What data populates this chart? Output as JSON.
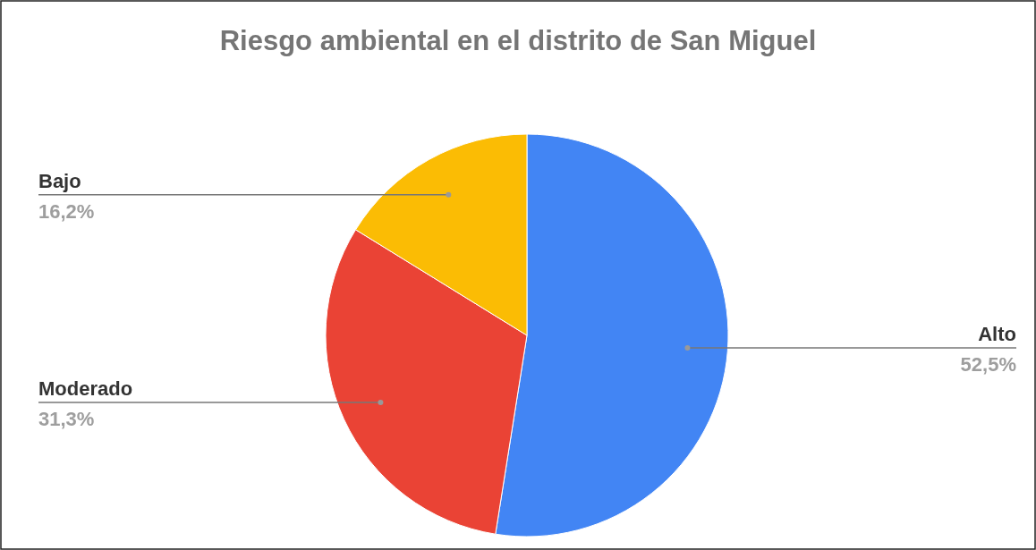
{
  "chart_data": {
    "type": "pie",
    "title": "Riesgo ambiental en el distrito de San Miguel",
    "categories": [
      "Alto",
      "Moderado",
      "Bajo"
    ],
    "values": [
      52.5,
      31.3,
      16.2
    ],
    "colors": [
      "#4285f4",
      "#ea4335",
      "#fbbc04"
    ],
    "value_labels": [
      "52,5%",
      "31,3%",
      "16,2%"
    ]
  }
}
